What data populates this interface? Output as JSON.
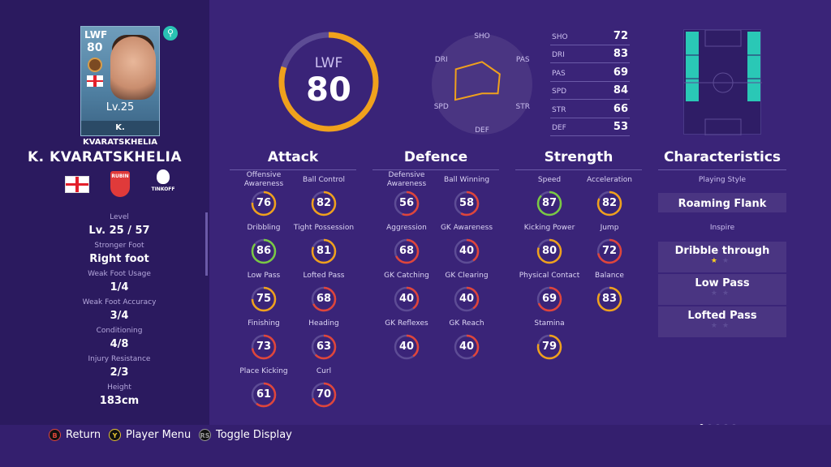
{
  "card": {
    "position": "LWF",
    "overall": "80",
    "level": "Lv.25",
    "name": "K. KVARATSKHELIA"
  },
  "player": {
    "full_name": "K. KVARATSKHELIA",
    "club_abbrev": "RUBIN",
    "league_abbrev": "TINKOFF"
  },
  "info": [
    {
      "label": "Level",
      "value": "Lv. 25 / 57"
    },
    {
      "label": "Stronger Foot",
      "value": "Right foot"
    },
    {
      "label": "Weak Foot Usage",
      "value": "1/4"
    },
    {
      "label": "Weak Foot Accuracy",
      "value": "3/4"
    },
    {
      "label": "Conditioning",
      "value": "4/8"
    },
    {
      "label": "Injury Resistance",
      "value": "2/3"
    },
    {
      "label": "Height",
      "value": "183cm"
    }
  ],
  "overview": {
    "position": "LWF",
    "rating": "80",
    "rating_value": 80
  },
  "radar": {
    "axes": [
      "SHO",
      "PAS",
      "STR",
      "DEF",
      "SPD",
      "DRI"
    ],
    "values": [
      72,
      69,
      66,
      53,
      84,
      83
    ]
  },
  "attributes": [
    {
      "key": "SHO",
      "value": "72"
    },
    {
      "key": "DRI",
      "value": "83"
    },
    {
      "key": "PAS",
      "value": "69"
    },
    {
      "key": "SPD",
      "value": "84"
    },
    {
      "key": "STR",
      "value": "66"
    },
    {
      "key": "DEF",
      "value": "53"
    }
  ],
  "sections": {
    "attack": "Attack",
    "defence": "Defence",
    "strength": "Strength",
    "characteristics": "Characteristics"
  },
  "attack": [
    {
      "label": "Offensive Awareness",
      "value": "76"
    },
    {
      "label": "Ball Control",
      "value": "82"
    },
    {
      "label": "Dribbling",
      "value": "86"
    },
    {
      "label": "Tight Possession",
      "value": "81"
    },
    {
      "label": "Low Pass",
      "value": "75"
    },
    {
      "label": "Lofted Pass",
      "value": "68"
    },
    {
      "label": "Finishing",
      "value": "73"
    },
    {
      "label": "Heading",
      "value": "63"
    },
    {
      "label": "Place Kicking",
      "value": "61"
    },
    {
      "label": "Curl",
      "value": "70"
    }
  ],
  "defence": [
    {
      "label": "Defensive Awareness",
      "value": "56"
    },
    {
      "label": "Ball Winning",
      "value": "58"
    },
    {
      "label": "Aggression",
      "value": "68"
    },
    {
      "label": "GK Awareness",
      "value": "40"
    },
    {
      "label": "GK Catching",
      "value": "40"
    },
    {
      "label": "GK Clearing",
      "value": "40"
    },
    {
      "label": "GK Reflexes",
      "value": "40"
    },
    {
      "label": "GK Reach",
      "value": "40"
    }
  ],
  "strength": [
    {
      "label": "Speed",
      "value": "87"
    },
    {
      "label": "Acceleration",
      "value": "82"
    },
    {
      "label": "Kicking Power",
      "value": "80"
    },
    {
      "label": "Jump",
      "value": "72"
    },
    {
      "label": "Physical Contact",
      "value": "69"
    },
    {
      "label": "Balance",
      "value": "83"
    },
    {
      "label": "Stamina",
      "value": "79"
    }
  ],
  "characteristics": {
    "playing_style_label": "Playing Style",
    "playing_style": "Roaming Flank",
    "inspire_label": "Inspire",
    "inspire": [
      {
        "name": "Dribble through",
        "stars": 1
      },
      {
        "name": "Low Pass",
        "stars": 0
      },
      {
        "name": "Lofted Pass",
        "stars": 0
      }
    ]
  },
  "hints": [
    {
      "glyph": "B",
      "label": "Return",
      "color": "#e0473a"
    },
    {
      "glyph": "Y",
      "label": "Player Menu",
      "color": "#e6c531"
    },
    {
      "glyph": "RS",
      "label": "Toggle Display",
      "color": "#9a9a9a"
    }
  ],
  "page_dots": {
    "count": 5,
    "active": 0
  },
  "colors": {
    "background": "#3a2478",
    "panel": "#2b1a5f",
    "ring_track": "#5d4c95",
    "ring_high": "#7ac943",
    "ring_mid": "#f0a11c",
    "ring_low": "#e0453a",
    "accent": "#29e6c4"
  }
}
